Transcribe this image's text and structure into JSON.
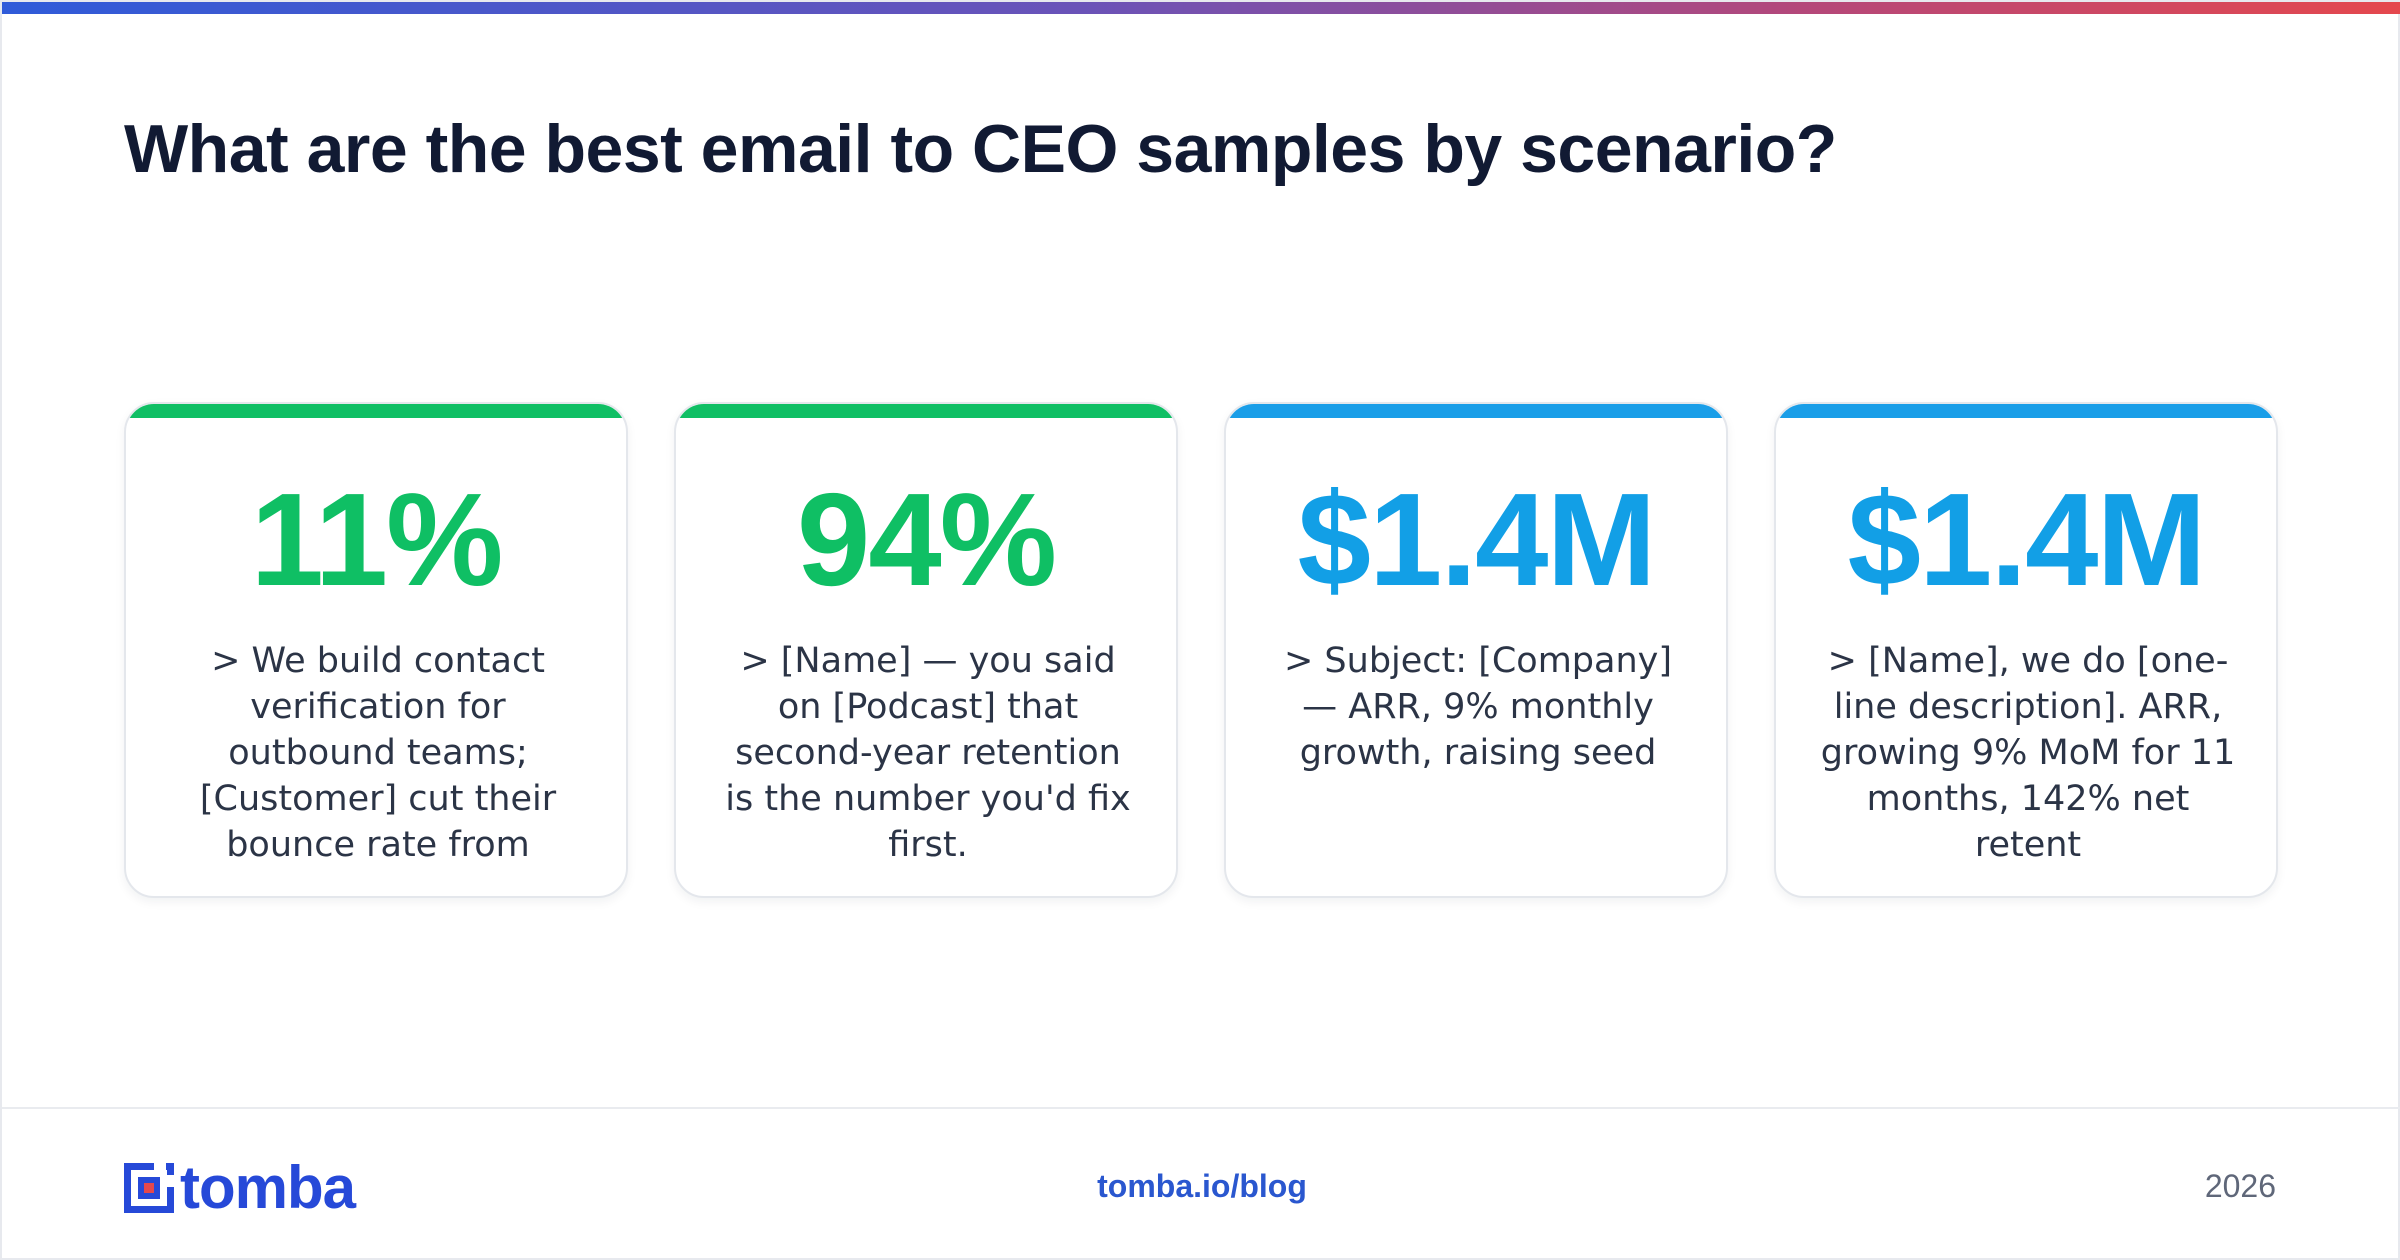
{
  "title": "What are the best email to CEO samples by scenario?",
  "colors": {
    "green": "#0fbf64",
    "blue": "#129fe6",
    "title": "#111a33",
    "brand": "#2649d8"
  },
  "cards": [
    {
      "stat": "11%",
      "accent": "green",
      "text": "> We build contact verification for outbound teams; [Customer] cut their bounce rate from"
    },
    {
      "stat": "94%",
      "accent": "green",
      "text": "> [Name] — you said on [Podcast] that second-year retention is the number you'd fix first."
    },
    {
      "stat": "$1.4M",
      "accent": "blue",
      "text": "> Subject: [Company] — ARR, 9% monthly growth, raising seed"
    },
    {
      "stat": "$1.4M",
      "accent": "blue",
      "text": "> [Name], we do [one-line description]. ARR, growing 9% MoM for 11 months, 142% net retent"
    }
  ],
  "footer": {
    "logo_text": "tomba",
    "logo_icon": "tomba-logo-icon",
    "url": "tomba.io/blog",
    "year": "2026"
  }
}
